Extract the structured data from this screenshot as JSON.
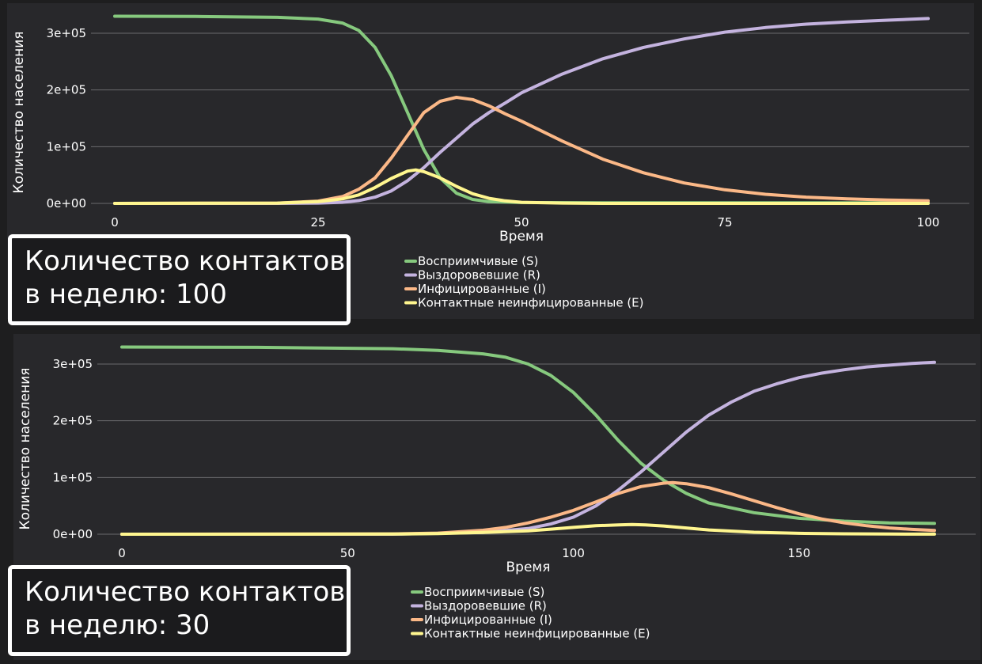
{
  "colors": {
    "S": "#86c97e",
    "R": "#c4b3df",
    "I": "#fbb887",
    "E": "#fff68f",
    "background": "#28282b",
    "page": "#1e1e1f"
  },
  "legend_labels": [
    "Восприимчивые (S)",
    "Выздоровевшие (R)",
    "Инфицированные (I)",
    "Контактные неинфицированные (E)"
  ],
  "captions": [
    {
      "line1": "Количество контактов",
      "line2": "в неделю: 100"
    },
    {
      "line1": "Количество контактов",
      "line2": "в неделю: 30"
    }
  ],
  "chart_data": [
    {
      "type": "line",
      "title": "",
      "xlabel": "Время",
      "ylabel": "Количество населения",
      "xlim": [
        0,
        100
      ],
      "ylim": [
        0,
        300000
      ],
      "xticks": [
        0,
        25,
        50,
        75,
        100
      ],
      "xtick_labels": [
        "0",
        "25",
        "50",
        "75",
        "100"
      ],
      "yticks": [
        0,
        100000,
        200000,
        300000
      ],
      "ytick_labels": [
        "0e+00",
        "1e+05",
        "2e+05",
        "3e+05"
      ],
      "grid": true,
      "legend_position": "bottom-center",
      "series": [
        {
          "name": "Восприимчивые (S)",
          "key": "S",
          "x": [
            0,
            10,
            20,
            25,
            28,
            30,
            32,
            34,
            36,
            38,
            40,
            42,
            44,
            46,
            50,
            60,
            70,
            80,
            90,
            100
          ],
          "y": [
            330000,
            329600,
            328000,
            325000,
            318000,
            305000,
            275000,
            225000,
            160000,
            95000,
            45000,
            18000,
            7000,
            3000,
            1500,
            1000,
            1000,
            1000,
            1000,
            1000
          ]
        },
        {
          "name": "Выздоровевшие (R)",
          "key": "R",
          "x": [
            0,
            20,
            25,
            28,
            30,
            32,
            34,
            36,
            38,
            40,
            42,
            44,
            46,
            48,
            50,
            55,
            60,
            65,
            70,
            75,
            80,
            85,
            90,
            95,
            100
          ],
          "y": [
            0,
            0,
            500,
            2000,
            5000,
            11000,
            22000,
            40000,
            63000,
            90000,
            115000,
            140000,
            160000,
            177000,
            195000,
            228000,
            255000,
            275000,
            290000,
            302000,
            310000,
            316000,
            320000,
            323000,
            326000
          ]
        },
        {
          "name": "Инфицированные (I)",
          "key": "I",
          "x": [
            0,
            20,
            25,
            28,
            30,
            32,
            34,
            36,
            38,
            40,
            42,
            44,
            46,
            48,
            50,
            55,
            60,
            65,
            70,
            75,
            80,
            85,
            90,
            95,
            100
          ],
          "y": [
            0,
            500,
            4000,
            12000,
            25000,
            45000,
            80000,
            120000,
            160000,
            180000,
            187000,
            183000,
            172000,
            158000,
            145000,
            110000,
            78000,
            54000,
            36000,
            24000,
            16000,
            11000,
            8000,
            6000,
            4500
          ]
        },
        {
          "name": "Контактные неинфицированные (E)",
          "key": "E",
          "x": [
            0,
            20,
            25,
            28,
            30,
            32,
            34,
            36,
            37,
            38,
            40,
            42,
            44,
            46,
            48,
            50,
            55,
            60,
            70,
            80,
            90,
            100
          ],
          "y": [
            0,
            500,
            3000,
            8000,
            15000,
            28000,
            44000,
            57000,
            59000,
            56000,
            45000,
            30000,
            17000,
            9000,
            4500,
            2000,
            500,
            0,
            0,
            0,
            0,
            0
          ]
        }
      ]
    },
    {
      "type": "line",
      "title": "",
      "xlabel": "Время",
      "ylabel": "Количество населения",
      "xlim": [
        0,
        180
      ],
      "ylim": [
        0,
        300000
      ],
      "xticks": [
        0,
        50,
        100,
        150
      ],
      "xtick_labels": [
        "0",
        "50",
        "100",
        "150"
      ],
      "yticks": [
        0,
        100000,
        200000,
        300000
      ],
      "ytick_labels": [
        "0e+00",
        "1e+05",
        "2e+05",
        "3e+05"
      ],
      "grid": true,
      "legend_position": "bottom-center",
      "series": [
        {
          "name": "Восприимчивые (S)",
          "key": "S",
          "x": [
            0,
            30,
            60,
            70,
            80,
            85,
            90,
            95,
            100,
            105,
            110,
            115,
            120,
            125,
            130,
            140,
            150,
            160,
            170,
            180
          ],
          "y": [
            330000,
            329500,
            327000,
            324000,
            318000,
            312000,
            300000,
            280000,
            250000,
            210000,
            165000,
            125000,
            95000,
            72000,
            55000,
            38000,
            28000,
            23000,
            20000,
            19000
          ]
        },
        {
          "name": "Выздоровевшие (R)",
          "key": "R",
          "x": [
            0,
            60,
            80,
            90,
            95,
            100,
            105,
            110,
            115,
            120,
            125,
            130,
            135,
            140,
            145,
            150,
            155,
            160,
            165,
            170,
            175,
            180
          ],
          "y": [
            0,
            0,
            3000,
            10000,
            18000,
            30000,
            50000,
            78000,
            110000,
            145000,
            180000,
            210000,
            233000,
            252000,
            265000,
            276000,
            284000,
            290000,
            295000,
            298000,
            301000,
            303000
          ]
        },
        {
          "name": "Инфицированные (I)",
          "key": "I",
          "x": [
            0,
            60,
            70,
            80,
            85,
            90,
            95,
            100,
            105,
            110,
            115,
            120,
            122,
            125,
            130,
            135,
            140,
            145,
            150,
            155,
            160,
            165,
            170,
            175,
            180
          ],
          "y": [
            0,
            500,
            2000,
            7000,
            12000,
            20000,
            30000,
            42000,
            57000,
            72000,
            84000,
            90000,
            91000,
            89000,
            82000,
            71000,
            59000,
            47000,
            36000,
            27000,
            20000,
            15000,
            11000,
            8500,
            6500
          ]
        },
        {
          "name": "Контактные неинфицированные (E)",
          "key": "E",
          "x": [
            0,
            60,
            70,
            80,
            90,
            95,
            100,
            105,
            110,
            113,
            116,
            120,
            125,
            130,
            140,
            150,
            160,
            170,
            180
          ],
          "y": [
            0,
            300,
            1000,
            3000,
            6000,
            9000,
            12000,
            15000,
            16500,
            17000,
            16500,
            14500,
            11000,
            7500,
            3500,
            1500,
            700,
            300,
            200
          ]
        }
      ]
    }
  ]
}
